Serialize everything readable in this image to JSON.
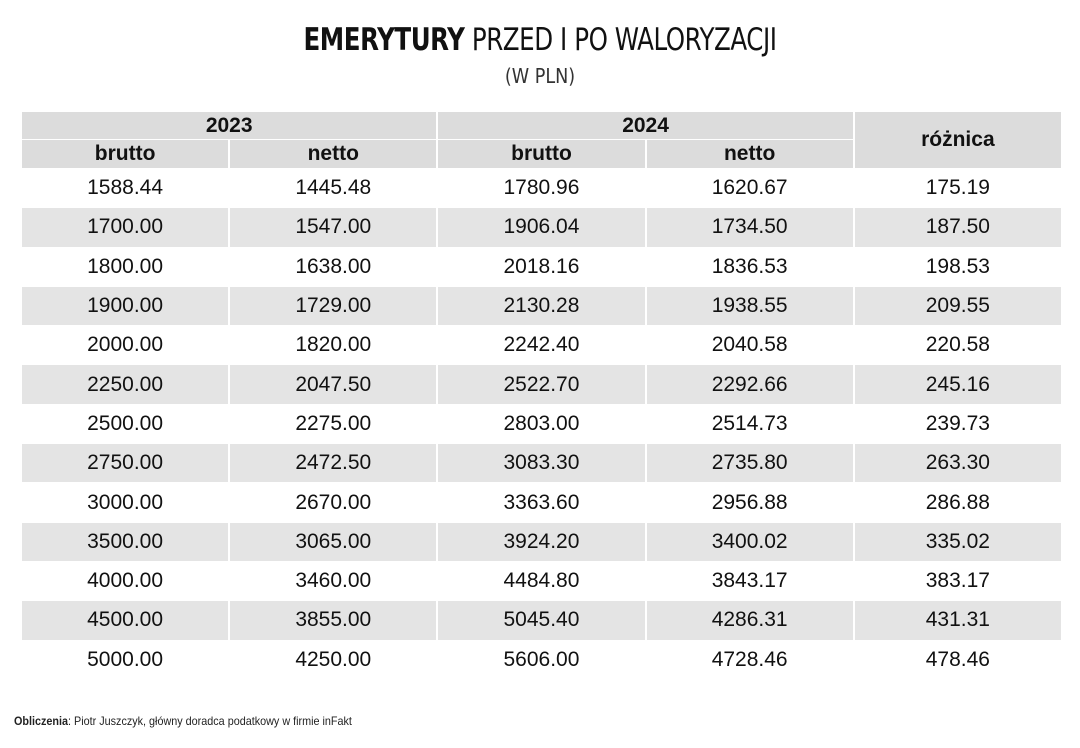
{
  "title_bold": "EMERYTURY",
  "title_light": "PRZED I PO WALORYZACJI",
  "subtitle": "(W PLN)",
  "header": {
    "year1": "2023",
    "year2": "2024",
    "diff": "różnica",
    "brutto": "brutto",
    "netto": "netto"
  },
  "rows": [
    [
      "1588.44",
      "1445.48",
      "1780.96",
      "1620.67",
      "175.19"
    ],
    [
      "1700.00",
      "1547.00",
      "1906.04",
      "1734.50",
      "187.50"
    ],
    [
      "1800.00",
      "1638.00",
      "2018.16",
      "1836.53",
      "198.53"
    ],
    [
      "1900.00",
      "1729.00",
      "2130.28",
      "1938.55",
      "209.55"
    ],
    [
      "2000.00",
      "1820.00",
      "2242.40",
      "2040.58",
      "220.58"
    ],
    [
      "2250.00",
      "2047.50",
      "2522.70",
      "2292.66",
      "245.16"
    ],
    [
      "2500.00",
      "2275.00",
      "2803.00",
      "2514.73",
      "239.73"
    ],
    [
      "2750.00",
      "2472.50",
      "3083.30",
      "2735.80",
      "263.30"
    ],
    [
      "3000.00",
      "2670.00",
      "3363.60",
      "2956.88",
      "286.88"
    ],
    [
      "3500.00",
      "3065.00",
      "3924.20",
      "3400.02",
      "335.02"
    ],
    [
      "4000.00",
      "3460.00",
      "4484.80",
      "3843.17",
      "383.17"
    ],
    [
      "4500.00",
      "3855.00",
      "5045.40",
      "4286.31",
      "431.31"
    ],
    [
      "5000.00",
      "4250.00",
      "5606.00",
      "4728.46",
      "478.46"
    ]
  ],
  "footer": {
    "label": "Obliczenia",
    "text": ": Piotr Juszczyk, główny doradca podatkowy w firmie inFakt"
  }
}
